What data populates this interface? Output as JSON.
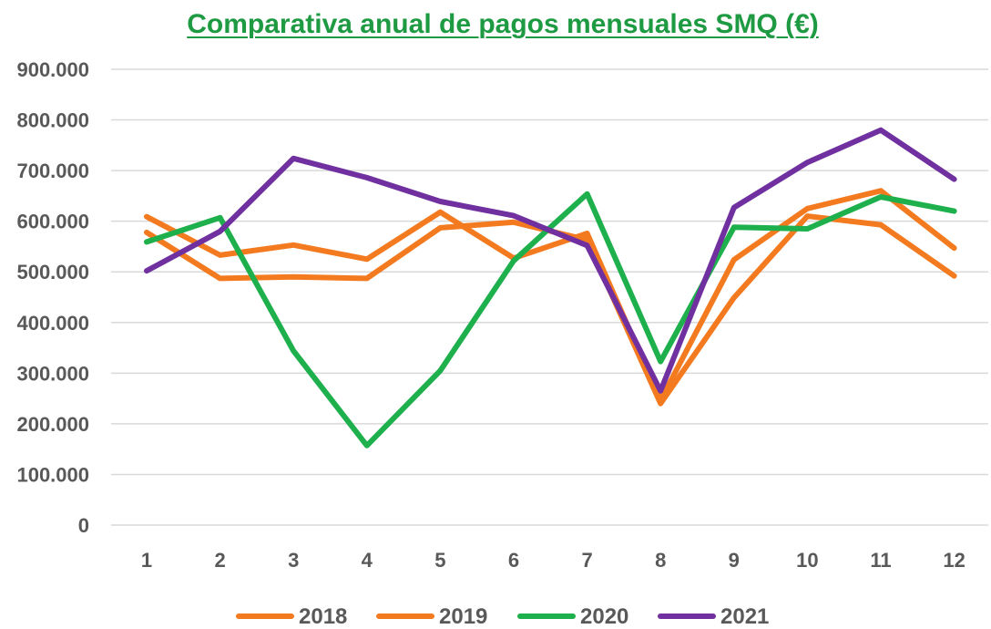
{
  "chart_data": {
    "type": "line",
    "title": "Comparativa anual de pagos mensuales SMQ (€)",
    "title_color": "#1e9a43",
    "xlabel": "",
    "ylabel": "",
    "categories": [
      "1",
      "2",
      "3",
      "4",
      "5",
      "6",
      "7",
      "8",
      "9",
      "10",
      "11",
      "12"
    ],
    "y_ticks": [
      "0",
      "100.000",
      "200.000",
      "300.000",
      "400.000",
      "500.000",
      "600.000",
      "700.000",
      "800.000",
      "900.000"
    ],
    "ylim": [
      0,
      900000
    ],
    "grid": true,
    "legend_position": "bottom",
    "series": [
      {
        "name": "2018",
        "color": "#f47a20",
        "values": [
          578000,
          487000,
          490000,
          487000,
          587000,
          598000,
          563000,
          240000,
          449000,
          610000,
          593000,
          492000
        ]
      },
      {
        "name": "2019",
        "color": "#f47a20",
        "values": [
          609000,
          533000,
          553000,
          525000,
          618000,
          527000,
          576000,
          246000,
          524000,
          625000,
          660000,
          547000
        ]
      },
      {
        "name": "2020",
        "color": "#1eb04c",
        "values": [
          559000,
          607000,
          344000,
          157000,
          305000,
          522000,
          654000,
          323000,
          588000,
          585000,
          648000,
          620000
        ]
      },
      {
        "name": "2021",
        "color": "#7030a0",
        "values": [
          502000,
          580000,
          724000,
          686000,
          639000,
          611000,
          552000,
          265000,
          627000,
          716000,
          780000,
          683000
        ]
      }
    ]
  }
}
